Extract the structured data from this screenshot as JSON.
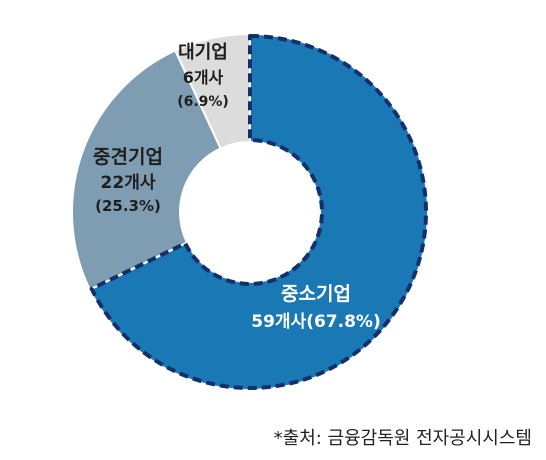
{
  "chart_data": {
    "type": "pie",
    "donut": true,
    "title": "",
    "unit": "개사",
    "slices": [
      {
        "name": "중소기업",
        "value": 59,
        "percent": 67.8,
        "color": "#1a78b4",
        "text_color": "#ffffff",
        "highlighted": true
      },
      {
        "name": "중견기업",
        "value": 22,
        "percent": 25.3,
        "color": "#7f9db2",
        "text_color": "#1f1f1f",
        "highlighted": false
      },
      {
        "name": "대기업",
        "value": 6,
        "percent": 6.9,
        "color": "#dcdcdc",
        "text_color": "#1f1f1f",
        "highlighted": false
      }
    ],
    "highlight_border_color": "#14306a"
  },
  "source_note": "*출처: 금융감독원 전자공시시스템"
}
